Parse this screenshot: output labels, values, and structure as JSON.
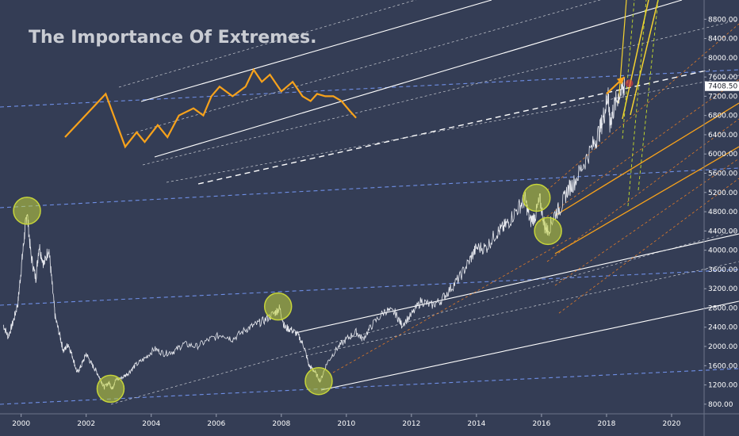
{
  "chart_data": {
    "type": "line",
    "title": "The Importance Of Extremes.",
    "xlabel": "",
    "ylabel": "",
    "xlim": [
      1999.35,
      2021.0
    ],
    "ylim": [
      600,
      9200
    ],
    "x_ticks": [
      {
        "value": 2000,
        "label": "2000"
      },
      {
        "value": 2002,
        "label": "2002"
      },
      {
        "value": 2004,
        "label": "2004"
      },
      {
        "value": 2006,
        "label": "2006"
      },
      {
        "value": 2008,
        "label": "2008"
      },
      {
        "value": 2010,
        "label": "2010"
      },
      {
        "value": 2012,
        "label": "2012"
      },
      {
        "value": 2014,
        "label": "2014"
      },
      {
        "value": 2016,
        "label": "2016"
      },
      {
        "value": 2018,
        "label": "2018"
      },
      {
        "value": 2020,
        "label": "2020"
      }
    ],
    "y_ticks": [
      {
        "value": 8800,
        "label": "8800.00"
      },
      {
        "value": 8400,
        "label": "8400.00"
      },
      {
        "value": 8000,
        "label": "8000.00"
      },
      {
        "value": 7600,
        "label": "7600.00"
      },
      {
        "value": 7200,
        "label": "7200.00"
      },
      {
        "value": 6800,
        "label": "6800.00"
      },
      {
        "value": 6400,
        "label": "6400.00"
      },
      {
        "value": 6000,
        "label": "6000.00"
      },
      {
        "value": 5600,
        "label": "5600.00"
      },
      {
        "value": 5200,
        "label": "5200.00"
      },
      {
        "value": 4800,
        "label": "4800.00"
      },
      {
        "value": 4400,
        "label": "4400.00"
      },
      {
        "value": 4000,
        "label": "4000.00"
      },
      {
        "value": 3600,
        "label": "3600.00"
      },
      {
        "value": 3200,
        "label": "3200.00"
      },
      {
        "value": 2800,
        "label": "2800.00"
      },
      {
        "value": 2400,
        "label": "2400.00"
      },
      {
        "value": 2000,
        "label": "2000.00"
      },
      {
        "value": 1600,
        "label": "1600.00"
      },
      {
        "value": 1200,
        "label": "1200.00"
      },
      {
        "value": 800,
        "label": "800.00"
      }
    ],
    "current_price": {
      "value": 7408.5,
      "label": "7408.50"
    },
    "series": [
      {
        "points": [
          [
            1999.45,
            2450
          ],
          [
            1999.6,
            2200
          ],
          [
            1999.75,
            2500
          ],
          [
            1999.9,
            2900
          ],
          [
            2000.0,
            3600
          ],
          [
            2000.1,
            4300
          ],
          [
            2000.18,
            4820
          ],
          [
            2000.3,
            3900
          ],
          [
            2000.45,
            3400
          ],
          [
            2000.55,
            4100
          ],
          [
            2000.7,
            3700
          ],
          [
            2000.85,
            4050
          ],
          [
            2000.95,
            3300
          ],
          [
            2001.05,
            2600
          ],
          [
            2001.2,
            2200
          ],
          [
            2001.3,
            1900
          ],
          [
            2001.45,
            2050
          ],
          [
            2001.6,
            1750
          ],
          [
            2001.72,
            1450
          ],
          [
            2001.85,
            1600
          ],
          [
            2002.0,
            1850
          ],
          [
            2002.15,
            1650
          ],
          [
            2002.3,
            1500
          ],
          [
            2002.45,
            1300
          ],
          [
            2002.55,
            1150
          ],
          [
            2002.7,
            1250
          ],
          [
            2002.8,
            1120
          ],
          [
            2002.9,
            1300
          ],
          [
            2003.1,
            1350
          ],
          [
            2003.3,
            1450
          ],
          [
            2003.5,
            1600
          ],
          [
            2003.8,
            1750
          ],
          [
            2004.1,
            1950
          ],
          [
            2004.4,
            1850
          ],
          [
            2004.7,
            1900
          ],
          [
            2005.0,
            2050
          ],
          [
            2005.4,
            2000
          ],
          [
            2005.8,
            2150
          ],
          [
            2006.2,
            2250
          ],
          [
            2006.5,
            2150
          ],
          [
            2006.9,
            2350
          ],
          [
            2007.2,
            2450
          ],
          [
            2007.5,
            2550
          ],
          [
            2007.8,
            2700
          ],
          [
            2007.95,
            2800
          ],
          [
            2008.1,
            2400
          ],
          [
            2008.3,
            2350
          ],
          [
            2008.5,
            2250
          ],
          [
            2008.7,
            2000
          ],
          [
            2008.85,
            1600
          ],
          [
            2009.0,
            1500
          ],
          [
            2009.2,
            1280
          ],
          [
            2009.4,
            1650
          ],
          [
            2009.7,
            1950
          ],
          [
            2010.0,
            2150
          ],
          [
            2010.3,
            2300
          ],
          [
            2010.5,
            2150
          ],
          [
            2010.8,
            2450
          ],
          [
            2011.2,
            2750
          ],
          [
            2011.5,
            2700
          ],
          [
            2011.7,
            2450
          ],
          [
            2012.0,
            2650
          ],
          [
            2012.3,
            2950
          ],
          [
            2012.6,
            2850
          ],
          [
            2012.9,
            2950
          ],
          [
            2013.2,
            3200
          ],
          [
            2013.5,
            3450
          ],
          [
            2013.8,
            3800
          ],
          [
            2014.0,
            4050
          ],
          [
            2014.3,
            4050
          ],
          [
            2014.6,
            4350
          ],
          [
            2014.8,
            4450
          ],
          [
            2015.0,
            4600
          ],
          [
            2015.3,
            4900
          ],
          [
            2015.5,
            5050
          ],
          [
            2015.65,
            4600
          ],
          [
            2015.8,
            4700
          ],
          [
            2015.95,
            5050
          ],
          [
            2016.1,
            4500
          ],
          [
            2016.2,
            4400
          ],
          [
            2016.4,
            4750
          ],
          [
            2016.6,
            4900
          ],
          [
            2016.8,
            5250
          ],
          [
            2017.0,
            5400
          ],
          [
            2017.3,
            5800
          ],
          [
            2017.6,
            6200
          ],
          [
            2017.8,
            6500
          ],
          [
            2017.95,
            6900
          ],
          [
            2018.05,
            7300
          ],
          [
            2018.1,
            6600
          ],
          [
            2018.2,
            6900
          ],
          [
            2018.35,
            7200
          ],
          [
            2018.5,
            7350
          ],
          [
            2018.55,
            7408.5
          ]
        ]
      }
    ]
  },
  "annotations": {
    "extreme_circles": [
      {
        "x": 2000.18,
        "y": 4820
      },
      {
        "x": 2002.75,
        "y": 1120
      },
      {
        "x": 2007.9,
        "y": 2830
      },
      {
        "x": 2009.15,
        "y": 1280
      },
      {
        "x": 2015.85,
        "y": 5090
      },
      {
        "x": 2016.2,
        "y": 4400
      }
    ],
    "fractal_schematic": [
      [
        2001.35,
        6350
      ],
      [
        2002.6,
        7250
      ],
      [
        2003.2,
        6150
      ],
      [
        2003.55,
        6450
      ],
      [
        2003.8,
        6250
      ],
      [
        2004.2,
        6600
      ],
      [
        2004.5,
        6350
      ],
      [
        2004.85,
        6800
      ],
      [
        2005.3,
        6950
      ],
      [
        2005.6,
        6800
      ],
      [
        2005.85,
        7200
      ],
      [
        2006.1,
        7400
      ],
      [
        2006.5,
        7200
      ],
      [
        2006.9,
        7400
      ],
      [
        2007.15,
        7750
      ],
      [
        2007.4,
        7500
      ],
      [
        2007.65,
        7650
      ],
      [
        2008.0,
        7300
      ],
      [
        2008.35,
        7500
      ],
      [
        2008.65,
        7200
      ],
      [
        2008.9,
        7100
      ],
      [
        2009.1,
        7250
      ],
      [
        2009.35,
        7200
      ],
      [
        2009.6,
        7200
      ],
      [
        2009.85,
        7100
      ],
      [
        2010.1,
        6900
      ],
      [
        2010.3,
        6750
      ]
    ],
    "tops_arrow": {
      "from": [
        2018.0,
        7250
      ],
      "to": [
        2018.55,
        7600
      ]
    }
  }
}
